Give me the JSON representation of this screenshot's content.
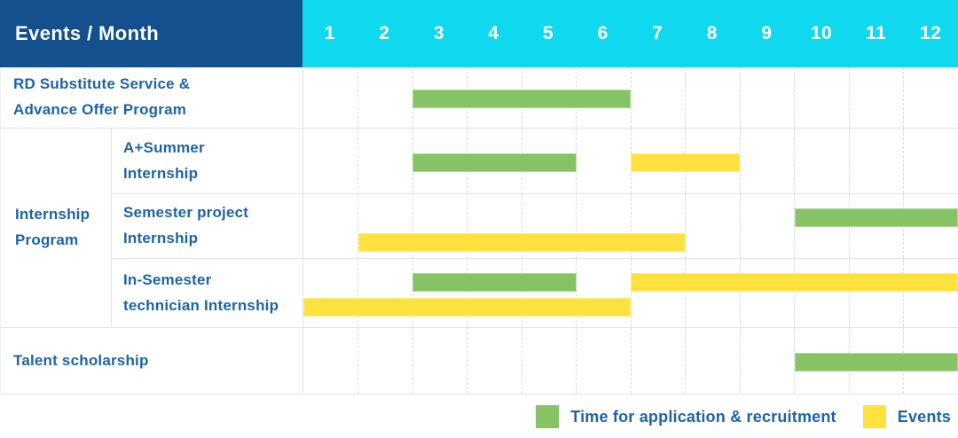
{
  "chart_data": {
    "type": "bar",
    "variant": "gantt-timeline",
    "title": "Events / Month",
    "x": {
      "label": "Month",
      "ticks": [
        1,
        2,
        3,
        4,
        5,
        6,
        7,
        8,
        9,
        10,
        11,
        12
      ],
      "range": [
        1,
        12
      ]
    },
    "grid": true,
    "legend_position": "bottom-right",
    "rows": [
      {
        "label": "RD Substitute Service &\nAdvance Offer Program",
        "group": "",
        "bars": [
          {
            "series": "Time for application & recruitment",
            "color": "green",
            "lane": "middle",
            "start_month": 3,
            "end_month": 6
          }
        ]
      },
      {
        "label": "A+Summer\nInternship",
        "group": "Internship\nProgram",
        "bars": [
          {
            "series": "Time for application & recruitment",
            "color": "green",
            "lane": "middle",
            "start_month": 3,
            "end_month": 5
          },
          {
            "series": "Events",
            "color": "yellow",
            "lane": "middle",
            "start_month": 7,
            "end_month": 8
          }
        ]
      },
      {
        "label": "Semester project\nInternship",
        "group": "Internship\nProgram",
        "bars": [
          {
            "series": "Time for application & recruitment",
            "color": "green",
            "lane": "upper",
            "start_month": 10,
            "end_month": 12
          },
          {
            "series": "Events",
            "color": "yellow",
            "lane": "lower",
            "start_month": 2,
            "end_month": 7
          }
        ]
      },
      {
        "label": "In-Semester\ntechnician Internship",
        "group": "Internship\nProgram",
        "bars": [
          {
            "series": "Time for application & recruitment",
            "color": "green",
            "lane": "upper",
            "start_month": 3,
            "end_month": 5
          },
          {
            "series": "Events",
            "color": "yellow",
            "lane": "upper",
            "start_month": 7,
            "end_month": 12
          },
          {
            "series": "Events",
            "color": "yellow",
            "lane": "lower",
            "start_month": 1,
            "end_month": 6
          }
        ]
      },
      {
        "label": "Talent scholarship",
        "group": "",
        "bars": [
          {
            "series": "Time for application & recruitment",
            "color": "green",
            "lane": "middle",
            "start_month": 10,
            "end_month": 12
          }
        ]
      }
    ],
    "legend": [
      {
        "color": "green",
        "label": "Time for application & recruitment"
      },
      {
        "color": "yellow",
        "label": "Events"
      }
    ]
  },
  "colors": {
    "header_bg": "#14508E",
    "month_header_bg": "#10D8EE",
    "green": "#85C365",
    "yellow": "#FFE23F",
    "label_text": "#1D64A6",
    "header_text": "#FFFFFF",
    "grid_line": "#E2E2E2"
  }
}
